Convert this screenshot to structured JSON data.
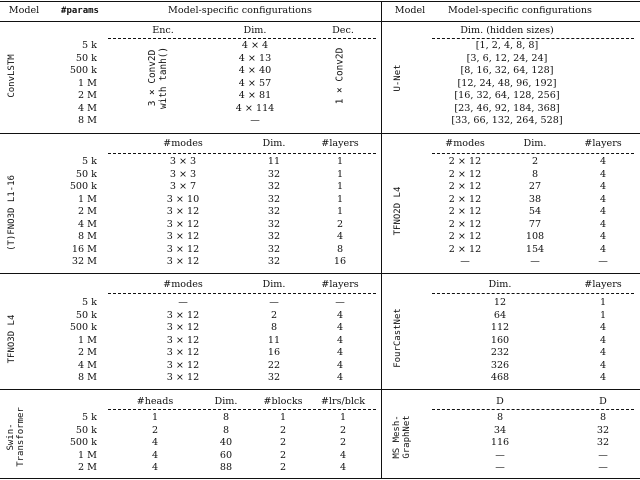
{
  "header_left": {
    "model": "Model",
    "params": "#params",
    "configs": "Model-specific configurations"
  },
  "header_right": {
    "model": "Model",
    "configs": "Model-specific configurations"
  },
  "params": [
    "5 k",
    "50 k",
    "500 k",
    "1 M",
    "2 M",
    "4 M",
    "8 M",
    "16 M",
    "32 M"
  ],
  "convlstm": {
    "name": "ConvLSTM",
    "cols": [
      "Enc.",
      "Dim.",
      "Dec."
    ],
    "enc": "3 × Conv2D\nwith tanh()",
    "dec": "1 × Conv2D",
    "dims": [
      "4 × 4",
      "4 × 13",
      "4 × 40",
      "4 × 57",
      "4 × 81",
      "4 × 114",
      "—"
    ]
  },
  "tfno_l116": {
    "name": "(T)FNO3D L1-16",
    "cols": [
      "#modes",
      "Dim.",
      "#layers"
    ],
    "rows": [
      [
        "3 × 3",
        "11",
        "1"
      ],
      [
        "3 × 3",
        "32",
        "1"
      ],
      [
        "3 × 7",
        "32",
        "1"
      ],
      [
        "3 × 10",
        "32",
        "1"
      ],
      [
        "3 × 12",
        "32",
        "1"
      ],
      [
        "3 × 12",
        "32",
        "2"
      ],
      [
        "3 × 12",
        "32",
        "4"
      ],
      [
        "3 × 12",
        "32",
        "8"
      ],
      [
        "3 × 12",
        "32",
        "16"
      ]
    ]
  },
  "tfno3d_l4": {
    "name": "TFNO3D L4",
    "cols": [
      "#modes",
      "Dim.",
      "#layers"
    ],
    "rows": [
      [
        "—",
        "—",
        "—"
      ],
      [
        "3 × 12",
        "2",
        "4"
      ],
      [
        "3 × 12",
        "8",
        "4"
      ],
      [
        "3 × 12",
        "11",
        "4"
      ],
      [
        "3 × 12",
        "16",
        "4"
      ],
      [
        "3 × 12",
        "22",
        "4"
      ],
      [
        "3 × 12",
        "32",
        "4"
      ]
    ]
  },
  "swin": {
    "name": "Swin-\nTransformer",
    "cols": [
      "#heads",
      "Dim.",
      "#blocks",
      "#lrs/blck"
    ],
    "rows": [
      [
        "1",
        "8",
        "1",
        "1"
      ],
      [
        "2",
        "8",
        "2",
        "2"
      ],
      [
        "4",
        "40",
        "2",
        "2"
      ],
      [
        "4",
        "60",
        "2",
        "4"
      ],
      [
        "4",
        "88",
        "2",
        "4"
      ]
    ]
  },
  "unet": {
    "name": "U-Net",
    "col": "Dim. (hidden sizes)",
    "rows": [
      "[1, 2, 4, 8, 8]",
      "[3, 6, 12, 24, 24]",
      "[8, 16, 32, 64, 128]",
      "[12, 24, 48, 96, 192]",
      "[16, 32, 64, 128, 256]",
      "[23, 46, 92, 184, 368]",
      "[33, 66, 132, 264, 528]"
    ]
  },
  "tfno2d_l4": {
    "name": "TFNO2D L4",
    "cols": [
      "#modes",
      "Dim.",
      "#layers"
    ],
    "rows": [
      [
        "2 × 12",
        "2",
        "4"
      ],
      [
        "2 × 12",
        "8",
        "4"
      ],
      [
        "2 × 12",
        "27",
        "4"
      ],
      [
        "2 × 12",
        "38",
        "4"
      ],
      [
        "2 × 12",
        "54",
        "4"
      ],
      [
        "2 × 12",
        "77",
        "4"
      ],
      [
        "2 × 12",
        "108",
        "4"
      ],
      [
        "2 × 12",
        "154",
        "4"
      ],
      [
        "—",
        "—",
        "—"
      ]
    ]
  },
  "fourcast": {
    "name": "FourCastNet",
    "cols": [
      "Dim.",
      "#layers"
    ],
    "rows": [
      [
        "12",
        "1"
      ],
      [
        "64",
        "1"
      ],
      [
        "112",
        "4"
      ],
      [
        "160",
        "4"
      ],
      [
        "232",
        "4"
      ],
      [
        "326",
        "4"
      ],
      [
        "468",
        "4"
      ]
    ]
  },
  "graphnet": {
    "name": "MS Mesh-\nGraphNet",
    "col_processor": "D",
    "col_processor_sub": "processor",
    "col_other": "D",
    "col_other_sub": "other",
    "rows": [
      [
        "8",
        "8"
      ],
      [
        "34",
        "32"
      ],
      [
        "116",
        "32"
      ],
      [
        "—",
        "—"
      ],
      [
        "—",
        "—"
      ]
    ]
  }
}
